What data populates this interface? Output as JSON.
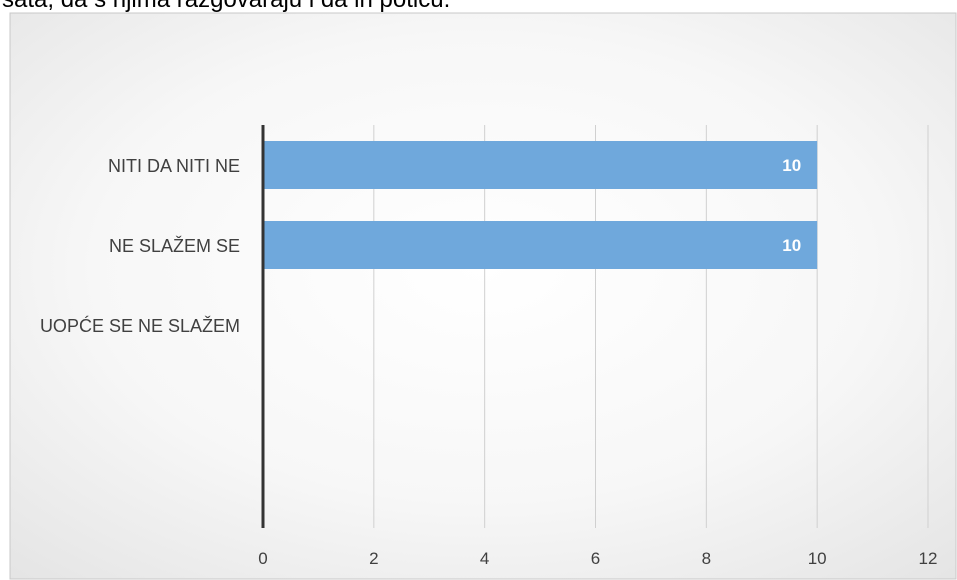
{
  "caption_partial": "sata, da s njima razgovaraju i da ih potiču.",
  "chart_data": {
    "type": "bar",
    "orientation": "horizontal",
    "categories": [
      "NITI DA NITI NE",
      "NE SLAŽEM SE",
      "UOPĆE SE NE SLAŽEM"
    ],
    "values": [
      10,
      10,
      0
    ],
    "data_labels": [
      "10",
      "10",
      ""
    ],
    "xlim": [
      0,
      12
    ],
    "xticks": [
      0,
      2,
      4,
      6,
      8,
      10,
      12
    ],
    "tick_labels": [
      "0",
      "2",
      "4",
      "6",
      "8",
      "10",
      "12"
    ],
    "title": "",
    "xlabel": "",
    "ylabel": "",
    "grid": "vertical",
    "legend": "none",
    "colors": {
      "bar": "#6fa8dc",
      "bar_label": "#ffffff",
      "grid": "#d0d0d0",
      "axis": "#333333",
      "text": "#404040",
      "border": "#c8c8c8",
      "background_center": "#ffffff",
      "background_edge": "#e6e6e6"
    }
  }
}
